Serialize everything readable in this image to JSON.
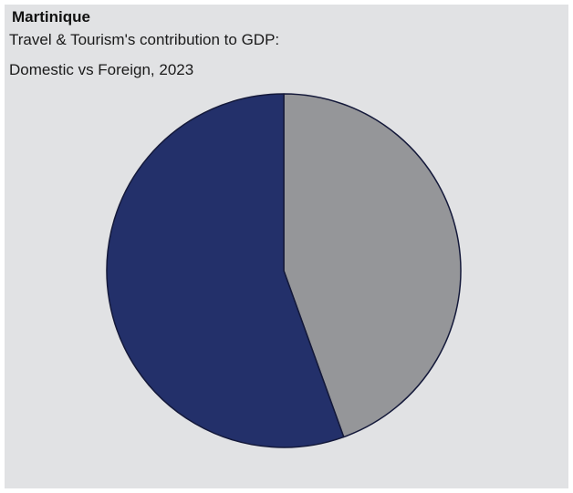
{
  "chart_data": {
    "type": "pie",
    "title": "Martinique",
    "subtitle_lines": [
      "Travel & Tourism's contribution to GDP:",
      "Domestic vs Foreign, 2023"
    ],
    "slices": [
      {
        "value": 44.5,
        "color": "#959699"
      },
      {
        "value": 55.5,
        "color": "#23306a"
      }
    ],
    "start_angle_deg": 0,
    "direction": "clockwise",
    "legend": "none"
  }
}
